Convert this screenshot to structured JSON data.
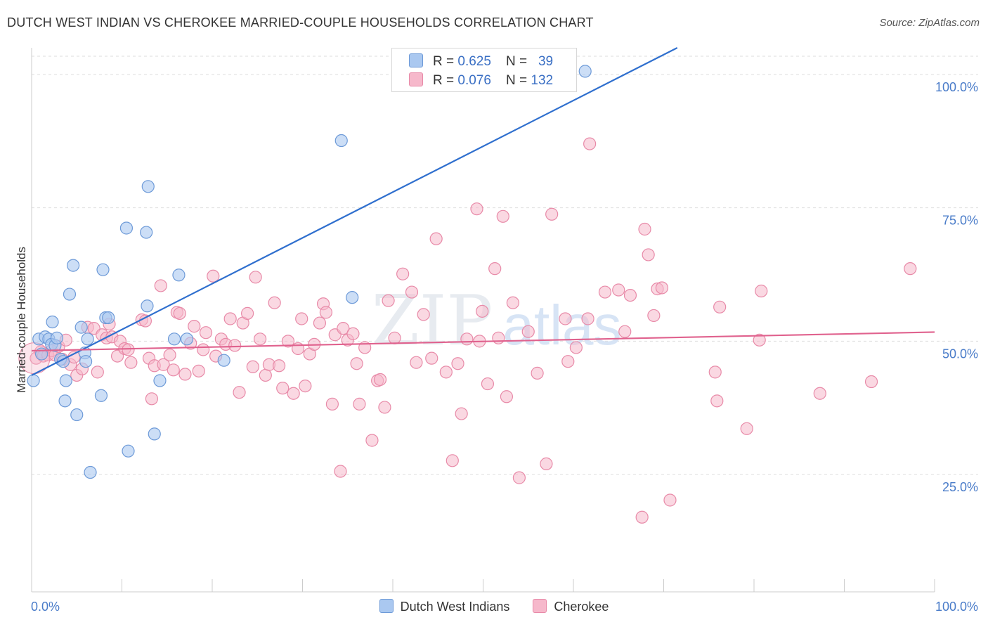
{
  "header": {
    "title": "DUTCH WEST INDIAN VS CHEROKEE MARRIED-COUPLE HOUSEHOLDS CORRELATION CHART",
    "source": "Source: ZipAtlas.com"
  },
  "watermark": {
    "zip": "ZIP",
    "atlas": "atlas"
  },
  "colors": {
    "blue_fill": "#aac8f0",
    "blue_stroke": "#6d9ad8",
    "blue_line": "#2f6fce",
    "pink_fill": "#f6b8cb",
    "pink_stroke": "#e88aa8",
    "pink_line": "#e0628e",
    "tick_label": "#4a7cc9",
    "grid": "#dddddd"
  },
  "legend": {
    "rows": [
      {
        "r_label": "R = ",
        "r_value": "0.625",
        "n_label": "N = ",
        "n_value": "39"
      },
      {
        "r_label": "R = ",
        "r_value": "0.076",
        "n_label": "N = ",
        "n_value": "132"
      }
    ],
    "bottom": [
      "Dutch West Indians",
      "Cherokee"
    ]
  },
  "chart_data": {
    "type": "scatter",
    "title": "DUTCH WEST INDIAN VS CHEROKEE MARRIED-COUPLE HOUSEHOLDS CORRELATION CHART",
    "xlabel": "",
    "ylabel": "Married-couple Households",
    "xlim": [
      0,
      100
    ],
    "ylim": [
      3,
      105
    ],
    "x_tick_labels": [
      "0.0%",
      "100.0%"
    ],
    "y_ticks": [
      25,
      50,
      75,
      100
    ],
    "y_tick_labels": [
      "25.0%",
      "50.0%",
      "75.0%",
      "100.0%"
    ],
    "grid": true,
    "series": [
      {
        "name": "Dutch West Indians",
        "r": 0.625,
        "n": 39,
        "trend": {
          "x": [
            0,
            71.5
          ],
          "y": 43.6,
          "y_end": 105
        },
        "points": [
          [
            0.2,
            42.6
          ],
          [
            0.8,
            50.4
          ],
          [
            1.1,
            47.6
          ],
          [
            1.5,
            50.8
          ],
          [
            1.9,
            50.4
          ],
          [
            2.2,
            49.4
          ],
          [
            2.3,
            53.6
          ],
          [
            2.6,
            49.2
          ],
          [
            2.8,
            50.6
          ],
          [
            3.2,
            46.6
          ],
          [
            3.5,
            46.2
          ],
          [
            3.7,
            38.8
          ],
          [
            3.8,
            42.6
          ],
          [
            4.2,
            58.8
          ],
          [
            4.6,
            64.2
          ],
          [
            5.0,
            36.2
          ],
          [
            5.5,
            52.6
          ],
          [
            5.9,
            47.8
          ],
          [
            6.0,
            46.2
          ],
          [
            6.2,
            50.4
          ],
          [
            7.7,
            39.8
          ],
          [
            7.9,
            63.4
          ],
          [
            8.2,
            54.4
          ],
          [
            8.5,
            54.4
          ],
          [
            10.5,
            71.2
          ],
          [
            10.7,
            29.4
          ],
          [
            12.7,
            70.4
          ],
          [
            12.8,
            56.6
          ],
          [
            12.9,
            79.0
          ],
          [
            13.6,
            32.6
          ],
          [
            14.2,
            42.6
          ],
          [
            15.8,
            50.4
          ],
          [
            16.3,
            62.4
          ],
          [
            17.2,
            50.4
          ],
          [
            21.3,
            46.4
          ],
          [
            34.3,
            87.6
          ],
          [
            35.5,
            58.2
          ],
          [
            61.3,
            100.6
          ],
          [
            6.5,
            25.4
          ]
        ]
      },
      {
        "name": "Cherokee",
        "r": 0.076,
        "n": 132,
        "trend": {
          "x": [
            0,
            100
          ],
          "y": 48.2,
          "y_end": 51.7
        },
        "points": [
          [
            0.5,
            46.8
          ],
          [
            1.0,
            48.0
          ],
          [
            1.3,
            47.2
          ],
          [
            1.8,
            47.4
          ],
          [
            2.2,
            48.2
          ],
          [
            2.6,
            47.4
          ],
          [
            3.0,
            49.0
          ],
          [
            3.4,
            46.6
          ],
          [
            3.8,
            50.2
          ],
          [
            4.3,
            45.6
          ],
          [
            4.7,
            47.0
          ],
          [
            5.0,
            43.6
          ],
          [
            5.6,
            44.8
          ],
          [
            6.2,
            52.6
          ],
          [
            6.9,
            52.4
          ],
          [
            7.3,
            44.2
          ],
          [
            7.8,
            51.2
          ],
          [
            8.3,
            50.6
          ],
          [
            8.6,
            53.2
          ],
          [
            8.9,
            50.8
          ],
          [
            9.5,
            47.2
          ],
          [
            9.8,
            50.0
          ],
          [
            10.3,
            48.6
          ],
          [
            10.7,
            48.4
          ],
          [
            11.0,
            46.0
          ],
          [
            12.2,
            54.0
          ],
          [
            12.6,
            53.8
          ],
          [
            13.0,
            46.8
          ],
          [
            13.3,
            39.2
          ],
          [
            13.6,
            45.4
          ],
          [
            14.3,
            60.4
          ],
          [
            14.6,
            45.6
          ],
          [
            15.3,
            47.4
          ],
          [
            15.7,
            44.6
          ],
          [
            16.1,
            55.4
          ],
          [
            16.4,
            55.2
          ],
          [
            17.0,
            43.8
          ],
          [
            17.6,
            49.6
          ],
          [
            18.0,
            52.8
          ],
          [
            18.5,
            44.4
          ],
          [
            19.0,
            48.4
          ],
          [
            19.3,
            51.6
          ],
          [
            20.1,
            62.2
          ],
          [
            20.4,
            47.2
          ],
          [
            21.0,
            50.4
          ],
          [
            21.5,
            49.4
          ],
          [
            22.0,
            54.2
          ],
          [
            22.5,
            49.2
          ],
          [
            23.0,
            40.4
          ],
          [
            23.4,
            53.4
          ],
          [
            23.9,
            55.2
          ],
          [
            24.5,
            45.2
          ],
          [
            24.8,
            62.0
          ],
          [
            25.3,
            50.4
          ],
          [
            25.9,
            43.6
          ],
          [
            26.3,
            45.6
          ],
          [
            26.9,
            57.2
          ],
          [
            27.4,
            45.4
          ],
          [
            27.8,
            41.2
          ],
          [
            28.4,
            50.0
          ],
          [
            29.0,
            40.2
          ],
          [
            29.5,
            48.6
          ],
          [
            29.9,
            54.2
          ],
          [
            30.3,
            41.6
          ],
          [
            30.8,
            47.6
          ],
          [
            31.3,
            49.4
          ],
          [
            31.9,
            53.4
          ],
          [
            32.3,
            57.0
          ],
          [
            32.6,
            55.4
          ],
          [
            33.3,
            38.2
          ],
          [
            33.6,
            51.2
          ],
          [
            34.2,
            25.6
          ],
          [
            34.5,
            52.4
          ],
          [
            35.0,
            50.2
          ],
          [
            35.6,
            51.4
          ],
          [
            36.0,
            45.8
          ],
          [
            36.3,
            38.2
          ],
          [
            36.9,
            48.8
          ],
          [
            37.7,
            31.4
          ],
          [
            38.3,
            42.6
          ],
          [
            38.6,
            42.8
          ],
          [
            39.1,
            37.6
          ],
          [
            39.5,
            57.6
          ],
          [
            40.2,
            50.6
          ],
          [
            41.1,
            62.6
          ],
          [
            42.1,
            59.2
          ],
          [
            42.6,
            46.0
          ],
          [
            43.4,
            55.0
          ],
          [
            44.3,
            46.8
          ],
          [
            44.8,
            69.2
          ],
          [
            45.9,
            44.2
          ],
          [
            46.6,
            27.6
          ],
          [
            47.2,
            45.8
          ],
          [
            47.6,
            36.4
          ],
          [
            48.2,
            50.4
          ],
          [
            49.3,
            74.8
          ],
          [
            49.6,
            50.0
          ],
          [
            49.9,
            55.6
          ],
          [
            50.5,
            42.0
          ],
          [
            51.3,
            63.6
          ],
          [
            51.7,
            50.6
          ],
          [
            52.2,
            73.4
          ],
          [
            52.6,
            39.6
          ],
          [
            53.3,
            57.2
          ],
          [
            54.0,
            24.4
          ],
          [
            55.0,
            51.8
          ],
          [
            56.0,
            44.0
          ],
          [
            57.0,
            27.0
          ],
          [
            57.6,
            73.8
          ],
          [
            59.1,
            54.2
          ],
          [
            59.4,
            46.2
          ],
          [
            60.3,
            48.8
          ],
          [
            61.6,
            54.2
          ],
          [
            61.8,
            87.0
          ],
          [
            63.5,
            59.2
          ],
          [
            65.0,
            59.6
          ],
          [
            65.7,
            51.8
          ],
          [
            66.3,
            58.6
          ],
          [
            67.6,
            17.0
          ],
          [
            67.9,
            71.0
          ],
          [
            68.3,
            66.2
          ],
          [
            68.9,
            54.8
          ],
          [
            69.3,
            59.8
          ],
          [
            69.8,
            60.0
          ],
          [
            70.7,
            20.2
          ],
          [
            75.7,
            44.2
          ],
          [
            75.9,
            38.8
          ],
          [
            76.2,
            56.4
          ],
          [
            79.2,
            33.6
          ],
          [
            80.6,
            50.2
          ],
          [
            80.8,
            59.4
          ],
          [
            87.3,
            40.2
          ],
          [
            93.0,
            42.4
          ],
          [
            97.3,
            63.6
          ]
        ]
      }
    ]
  }
}
